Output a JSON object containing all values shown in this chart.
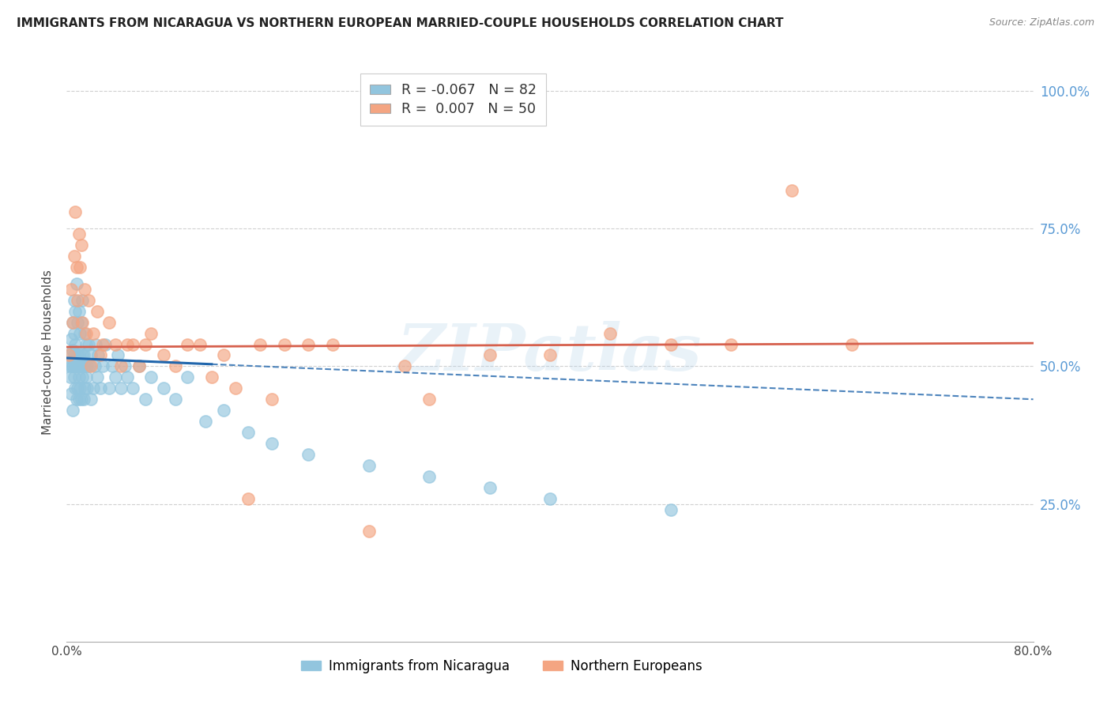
{
  "title": "IMMIGRANTS FROM NICARAGUA VS NORTHERN EUROPEAN MARRIED-COUPLE HOUSEHOLDS CORRELATION CHART",
  "source": "Source: ZipAtlas.com",
  "ylabel_label": "Married-couple Households",
  "legend_labels": [
    "Immigrants from Nicaragua",
    "Northern Europeans"
  ],
  "blue_R": -0.067,
  "blue_N": 82,
  "pink_R": 0.007,
  "pink_N": 50,
  "blue_color": "#92c5de",
  "pink_color": "#f4a582",
  "blue_line_color": "#2166ac",
  "pink_line_color": "#d6604d",
  "watermark_text": "ZIPatlas",
  "blue_scatter_x": [
    0.002,
    0.003,
    0.003,
    0.004,
    0.004,
    0.004,
    0.005,
    0.005,
    0.005,
    0.005,
    0.006,
    0.006,
    0.006,
    0.006,
    0.007,
    0.007,
    0.007,
    0.007,
    0.008,
    0.008,
    0.008,
    0.009,
    0.009,
    0.009,
    0.01,
    0.01,
    0.01,
    0.01,
    0.011,
    0.011,
    0.011,
    0.012,
    0.012,
    0.012,
    0.013,
    0.013,
    0.013,
    0.014,
    0.014,
    0.015,
    0.015,
    0.015,
    0.016,
    0.016,
    0.017,
    0.017,
    0.018,
    0.019,
    0.02,
    0.02,
    0.022,
    0.023,
    0.024,
    0.025,
    0.026,
    0.028,
    0.03,
    0.032,
    0.035,
    0.038,
    0.04,
    0.042,
    0.045,
    0.048,
    0.05,
    0.055,
    0.06,
    0.065,
    0.07,
    0.08,
    0.09,
    0.1,
    0.115,
    0.13,
    0.15,
    0.17,
    0.2,
    0.25,
    0.3,
    0.35,
    0.4,
    0.5
  ],
  "blue_scatter_y": [
    0.5,
    0.48,
    0.52,
    0.45,
    0.5,
    0.55,
    0.42,
    0.5,
    0.53,
    0.58,
    0.48,
    0.52,
    0.56,
    0.62,
    0.46,
    0.5,
    0.54,
    0.6,
    0.44,
    0.5,
    0.65,
    0.46,
    0.52,
    0.58,
    0.44,
    0.48,
    0.52,
    0.6,
    0.46,
    0.5,
    0.56,
    0.44,
    0.5,
    0.58,
    0.48,
    0.52,
    0.62,
    0.44,
    0.52,
    0.46,
    0.5,
    0.56,
    0.48,
    0.54,
    0.46,
    0.5,
    0.54,
    0.5,
    0.44,
    0.52,
    0.46,
    0.5,
    0.54,
    0.48,
    0.52,
    0.46,
    0.5,
    0.54,
    0.46,
    0.5,
    0.48,
    0.52,
    0.46,
    0.5,
    0.48,
    0.46,
    0.5,
    0.44,
    0.48,
    0.46,
    0.44,
    0.48,
    0.4,
    0.42,
    0.38,
    0.36,
    0.34,
    0.32,
    0.3,
    0.28,
    0.26,
    0.24
  ],
  "pink_scatter_x": [
    0.002,
    0.004,
    0.005,
    0.006,
    0.007,
    0.008,
    0.009,
    0.01,
    0.011,
    0.012,
    0.013,
    0.015,
    0.016,
    0.018,
    0.02,
    0.022,
    0.025,
    0.028,
    0.03,
    0.035,
    0.04,
    0.045,
    0.05,
    0.055,
    0.06,
    0.065,
    0.07,
    0.08,
    0.09,
    0.1,
    0.11,
    0.12,
    0.13,
    0.14,
    0.15,
    0.16,
    0.17,
    0.18,
    0.2,
    0.22,
    0.25,
    0.28,
    0.3,
    0.35,
    0.4,
    0.45,
    0.5,
    0.55,
    0.6,
    0.65
  ],
  "pink_scatter_y": [
    0.52,
    0.64,
    0.58,
    0.7,
    0.78,
    0.68,
    0.62,
    0.74,
    0.68,
    0.72,
    0.58,
    0.64,
    0.56,
    0.62,
    0.5,
    0.56,
    0.6,
    0.52,
    0.54,
    0.58,
    0.54,
    0.5,
    0.54,
    0.54,
    0.5,
    0.54,
    0.56,
    0.52,
    0.5,
    0.54,
    0.54,
    0.48,
    0.52,
    0.46,
    0.26,
    0.54,
    0.44,
    0.54,
    0.54,
    0.54,
    0.2,
    0.5,
    0.44,
    0.52,
    0.52,
    0.56,
    0.54,
    0.54,
    0.82,
    0.54
  ],
  "xmin": 0.0,
  "xmax": 0.8,
  "ymin": 0.0,
  "ymax": 1.05,
  "blue_trend_x0": 0.0,
  "blue_trend_x1": 0.8,
  "blue_trend_y0": 0.515,
  "blue_trend_y1": 0.44,
  "blue_trend_solid_x1": 0.12,
  "pink_trend_y0": 0.535,
  "pink_trend_y1": 0.542,
  "background_color": "#ffffff",
  "grid_color": "#d0d0d0",
  "title_color": "#222222",
  "right_axis_color": "#5b9bd5",
  "xlabel_color": "#222222"
}
